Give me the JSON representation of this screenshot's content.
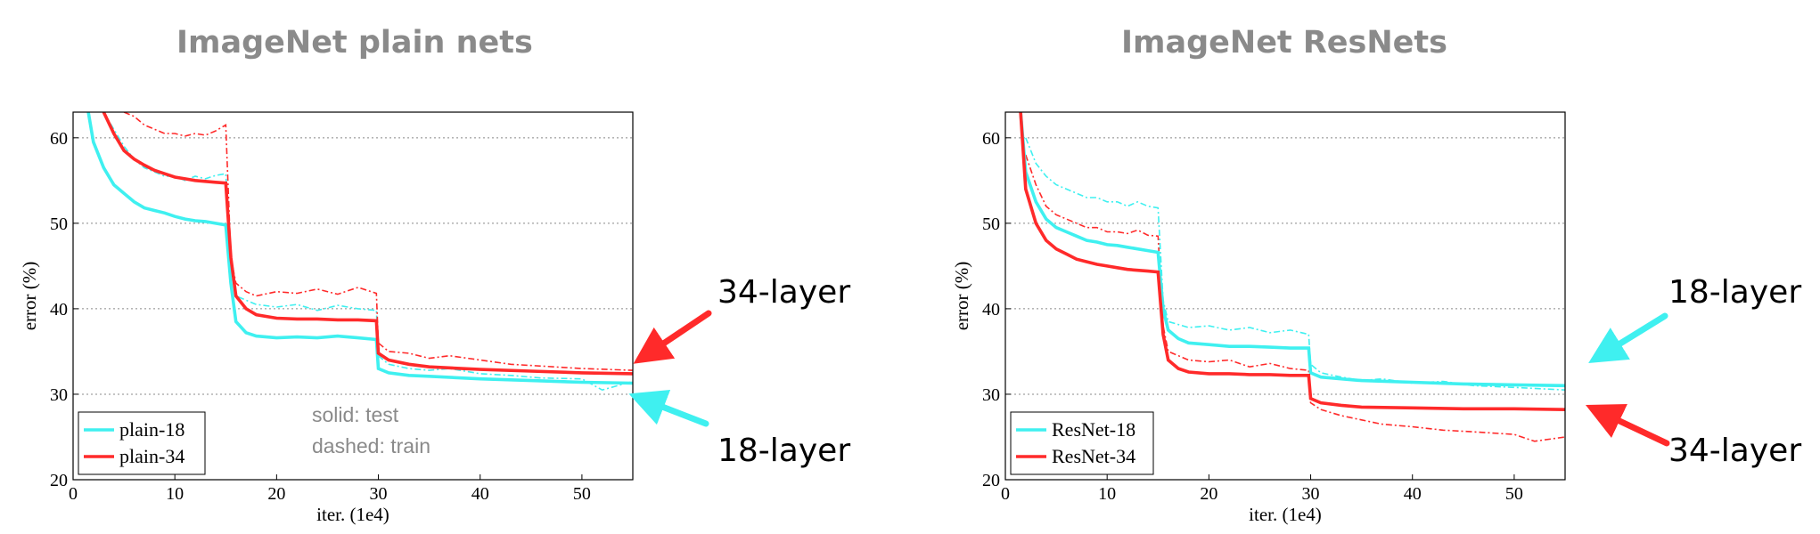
{
  "chart_data": [
    {
      "type": "line",
      "title": "ImageNet plain nets",
      "xlabel": "iter. (1e4)",
      "ylabel": "error (%)",
      "xlim": [
        0,
        55
      ],
      "ylim": [
        20,
        63
      ],
      "xticks": [
        0,
        10,
        20,
        30,
        40,
        50
      ],
      "yticks": [
        20,
        30,
        40,
        50,
        60
      ],
      "grid": "horizontal dotted",
      "legend_placement": "bottom-left",
      "note_lines": [
        "solid: test",
        "dashed: train"
      ],
      "callouts": [
        {
          "text": "34-layer",
          "color": "#ff2a2a",
          "points_to_y": 32.5
        },
        {
          "text": "18-layer",
          "color": "#3ff0f0",
          "points_to_y": 30.5
        }
      ],
      "series": [
        {
          "name": "plain-18",
          "style": "solid",
          "color": "#3ff0f0",
          "x": [
            1.5,
            2,
            3,
            4,
            5,
            6,
            7,
            8,
            9,
            10,
            11,
            12,
            13,
            14,
            15,
            15.5,
            16,
            17,
            18,
            20,
            22,
            24,
            26,
            28,
            29.8,
            30,
            31,
            33,
            35,
            40,
            45,
            50,
            55
          ],
          "y": [
            63,
            59.5,
            56.5,
            54.5,
            53.5,
            52.5,
            51.8,
            51.5,
            51.2,
            50.8,
            50.5,
            50.3,
            50.2,
            50,
            49.8,
            43,
            38.5,
            37.2,
            36.8,
            36.6,
            36.7,
            36.6,
            36.8,
            36.6,
            36.4,
            33,
            32.5,
            32.2,
            32.1,
            31.8,
            31.6,
            31.4,
            31.3
          ]
        },
        {
          "name": "plain-34",
          "style": "solid",
          "color": "#ff2a2a",
          "x": [
            3,
            4,
            5,
            6,
            7,
            8,
            9,
            10,
            11,
            12,
            13,
            14,
            15,
            15.5,
            16,
            17,
            18,
            20,
            22,
            24,
            26,
            28,
            29.8,
            30,
            31,
            33,
            35,
            40,
            45,
            50,
            55
          ],
          "y": [
            63,
            60.5,
            58.5,
            57.5,
            56.8,
            56.2,
            55.8,
            55.4,
            55.2,
            55,
            54.9,
            54.8,
            54.7,
            46,
            41.5,
            40,
            39.3,
            38.9,
            38.8,
            38.8,
            38.7,
            38.7,
            38.6,
            34.8,
            34,
            33.5,
            33.2,
            32.9,
            32.7,
            32.5,
            32.4
          ]
        },
        {
          "name": "plain-18 train",
          "style": "dashed",
          "color": "#3ff0f0",
          "x": [
            3,
            4,
            5,
            6,
            7,
            8,
            9,
            10,
            11,
            12,
            13,
            14,
            15,
            15.5,
            16,
            18,
            20,
            22,
            24,
            26,
            28,
            29.8,
            30,
            31,
            33,
            35,
            37,
            40,
            43,
            46,
            50,
            52,
            55
          ],
          "y": [
            63,
            61,
            59,
            57.5,
            56.5,
            56,
            55.5,
            55.5,
            55,
            55.5,
            55.2,
            55.6,
            55.8,
            45,
            41.5,
            40.5,
            40.2,
            40.5,
            39.8,
            40.4,
            40,
            39.8,
            34.5,
            33.5,
            33,
            32.8,
            33,
            32.4,
            32.2,
            31.9,
            31.8,
            30.5,
            31.5
          ]
        },
        {
          "name": "plain-34 train",
          "style": "dashed",
          "color": "#ff2a2a",
          "x": [
            5,
            6,
            7,
            8,
            9,
            10,
            11,
            12,
            13,
            14,
            15,
            15.5,
            16,
            17,
            18,
            20,
            22,
            24,
            26,
            28,
            29.8,
            30,
            31,
            33,
            35,
            37,
            40,
            43,
            46,
            50,
            55
          ],
          "y": [
            63,
            62.5,
            61.5,
            61,
            60.5,
            60.5,
            60.2,
            60.5,
            60.3,
            60.8,
            61.5,
            46,
            43,
            42,
            41.5,
            42,
            41.8,
            42.3,
            41.7,
            42.5,
            41.8,
            36,
            35,
            34.8,
            34.2,
            34.5,
            34,
            33.5,
            33.3,
            33,
            32.8
          ]
        }
      ]
    },
    {
      "type": "line",
      "title": "ImageNet ResNets",
      "xlabel": "iter. (1e4)",
      "ylabel": "error (%)",
      "xlim": [
        0,
        55
      ],
      "ylim": [
        20,
        63
      ],
      "xticks": [
        0,
        10,
        20,
        30,
        40,
        50
      ],
      "yticks": [
        20,
        30,
        40,
        50,
        60
      ],
      "grid": "horizontal dotted",
      "legend_placement": "bottom-left",
      "callouts": [
        {
          "text": "18-layer",
          "color": "#3ff0f0",
          "points_to_y": 31
        },
        {
          "text": "34-layer",
          "color": "#ff2a2a",
          "points_to_y": 28
        }
      ],
      "series": [
        {
          "name": "ResNet-18",
          "style": "solid",
          "color": "#3ff0f0",
          "x": [
            1.5,
            2,
            3,
            4,
            5,
            6,
            7,
            8,
            9,
            10,
            11,
            12,
            13,
            14,
            15,
            15.5,
            16,
            17,
            18,
            20,
            22,
            24,
            26,
            28,
            29.8,
            30,
            31,
            33,
            35,
            40,
            45,
            50,
            55
          ],
          "y": [
            63,
            56,
            52.5,
            50.5,
            49.5,
            49,
            48.5,
            48,
            47.8,
            47.5,
            47.4,
            47.2,
            47,
            46.8,
            46.6,
            40,
            37.5,
            36.5,
            36,
            35.8,
            35.6,
            35.6,
            35.5,
            35.4,
            35.4,
            32.5,
            32,
            31.8,
            31.6,
            31.4,
            31.2,
            31.1,
            31
          ]
        },
        {
          "name": "ResNet-34",
          "style": "solid",
          "color": "#ff2a2a",
          "x": [
            1.5,
            2,
            3,
            4,
            5,
            6,
            7,
            8,
            9,
            10,
            11,
            12,
            13,
            14,
            15,
            15.5,
            16,
            17,
            18,
            20,
            22,
            24,
            26,
            28,
            29.8,
            30,
            31,
            33,
            35,
            40,
            45,
            50,
            55
          ],
          "y": [
            63,
            54,
            50,
            48,
            47,
            46.4,
            45.8,
            45.5,
            45.2,
            45,
            44.8,
            44.6,
            44.5,
            44.4,
            44.3,
            37,
            34,
            33,
            32.6,
            32.4,
            32.4,
            32.3,
            32.3,
            32.2,
            32.2,
            29.5,
            29,
            28.7,
            28.5,
            28.4,
            28.3,
            28.3,
            28.2
          ]
        },
        {
          "name": "ResNet-18 train",
          "style": "dashed",
          "color": "#3ff0f0",
          "x": [
            2,
            3,
            4,
            5,
            6,
            7,
            8,
            9,
            10,
            11,
            12,
            13,
            14,
            15,
            15.5,
            16,
            18,
            20,
            22,
            24,
            26,
            28,
            29.8,
            30,
            31,
            33,
            35,
            37,
            40,
            43,
            46,
            50,
            55
          ],
          "y": [
            60,
            57,
            55.5,
            54.5,
            54,
            53.5,
            53,
            53,
            52.5,
            52.5,
            52,
            52.5,
            52,
            51.8,
            41,
            38.5,
            37.8,
            38,
            37.5,
            37.8,
            37.2,
            37.5,
            37,
            33.5,
            32.5,
            32,
            31.6,
            31.8,
            31.3,
            31.5,
            31,
            30.8,
            30.5
          ]
        },
        {
          "name": "ResNet-34 train",
          "style": "dashed",
          "color": "#ff2a2a",
          "x": [
            2,
            3,
            4,
            5,
            6,
            7,
            8,
            9,
            10,
            11,
            12,
            13,
            14,
            15,
            15.5,
            16,
            18,
            20,
            22,
            24,
            26,
            28,
            29.8,
            30,
            31,
            33,
            35,
            37,
            40,
            43,
            46,
            50,
            52,
            55
          ],
          "y": [
            58,
            54.5,
            52,
            51,
            50.5,
            50,
            49.5,
            49.5,
            49,
            49,
            48.8,
            49.2,
            48.6,
            48.5,
            38,
            35,
            34,
            33.8,
            34,
            33.2,
            33.6,
            33,
            32.8,
            29,
            28.2,
            27.5,
            27,
            26.5,
            26.2,
            25.8,
            25.6,
            25.3,
            24.5,
            25
          ]
        }
      ]
    }
  ]
}
